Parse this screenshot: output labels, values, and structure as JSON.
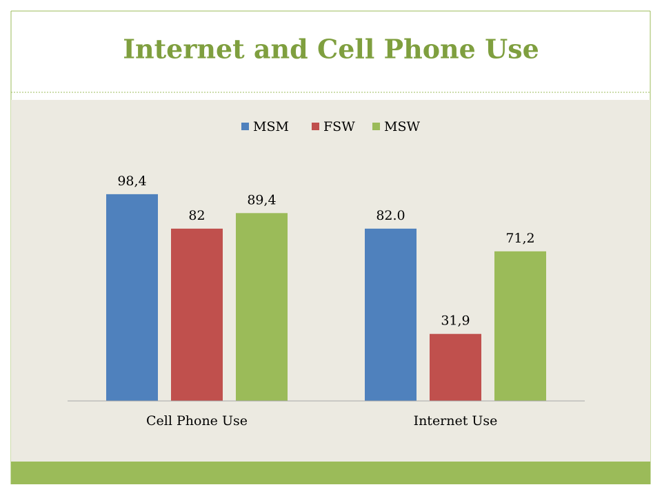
{
  "chart_data": {
    "type": "bar",
    "title": "Internet and Cell Phone Use",
    "categories": [
      "Cell Phone Use",
      "Internet Use"
    ],
    "series": [
      {
        "name": "MSM",
        "color": "#4f81bd",
        "values": [
          98.4,
          82.0
        ],
        "value_labels": [
          "98,4",
          "82.0"
        ]
      },
      {
        "name": "FSW",
        "color": "#c0504d",
        "values": [
          82,
          31.9
        ],
        "value_labels": [
          "82",
          "31,9"
        ]
      },
      {
        "name": "MSW",
        "color": "#9bbb59",
        "values": [
          89.4,
          71.2
        ],
        "value_labels": [
          "89,4",
          "71,2"
        ]
      }
    ],
    "ylim": [
      0,
      100
    ],
    "legend": "top"
  }
}
